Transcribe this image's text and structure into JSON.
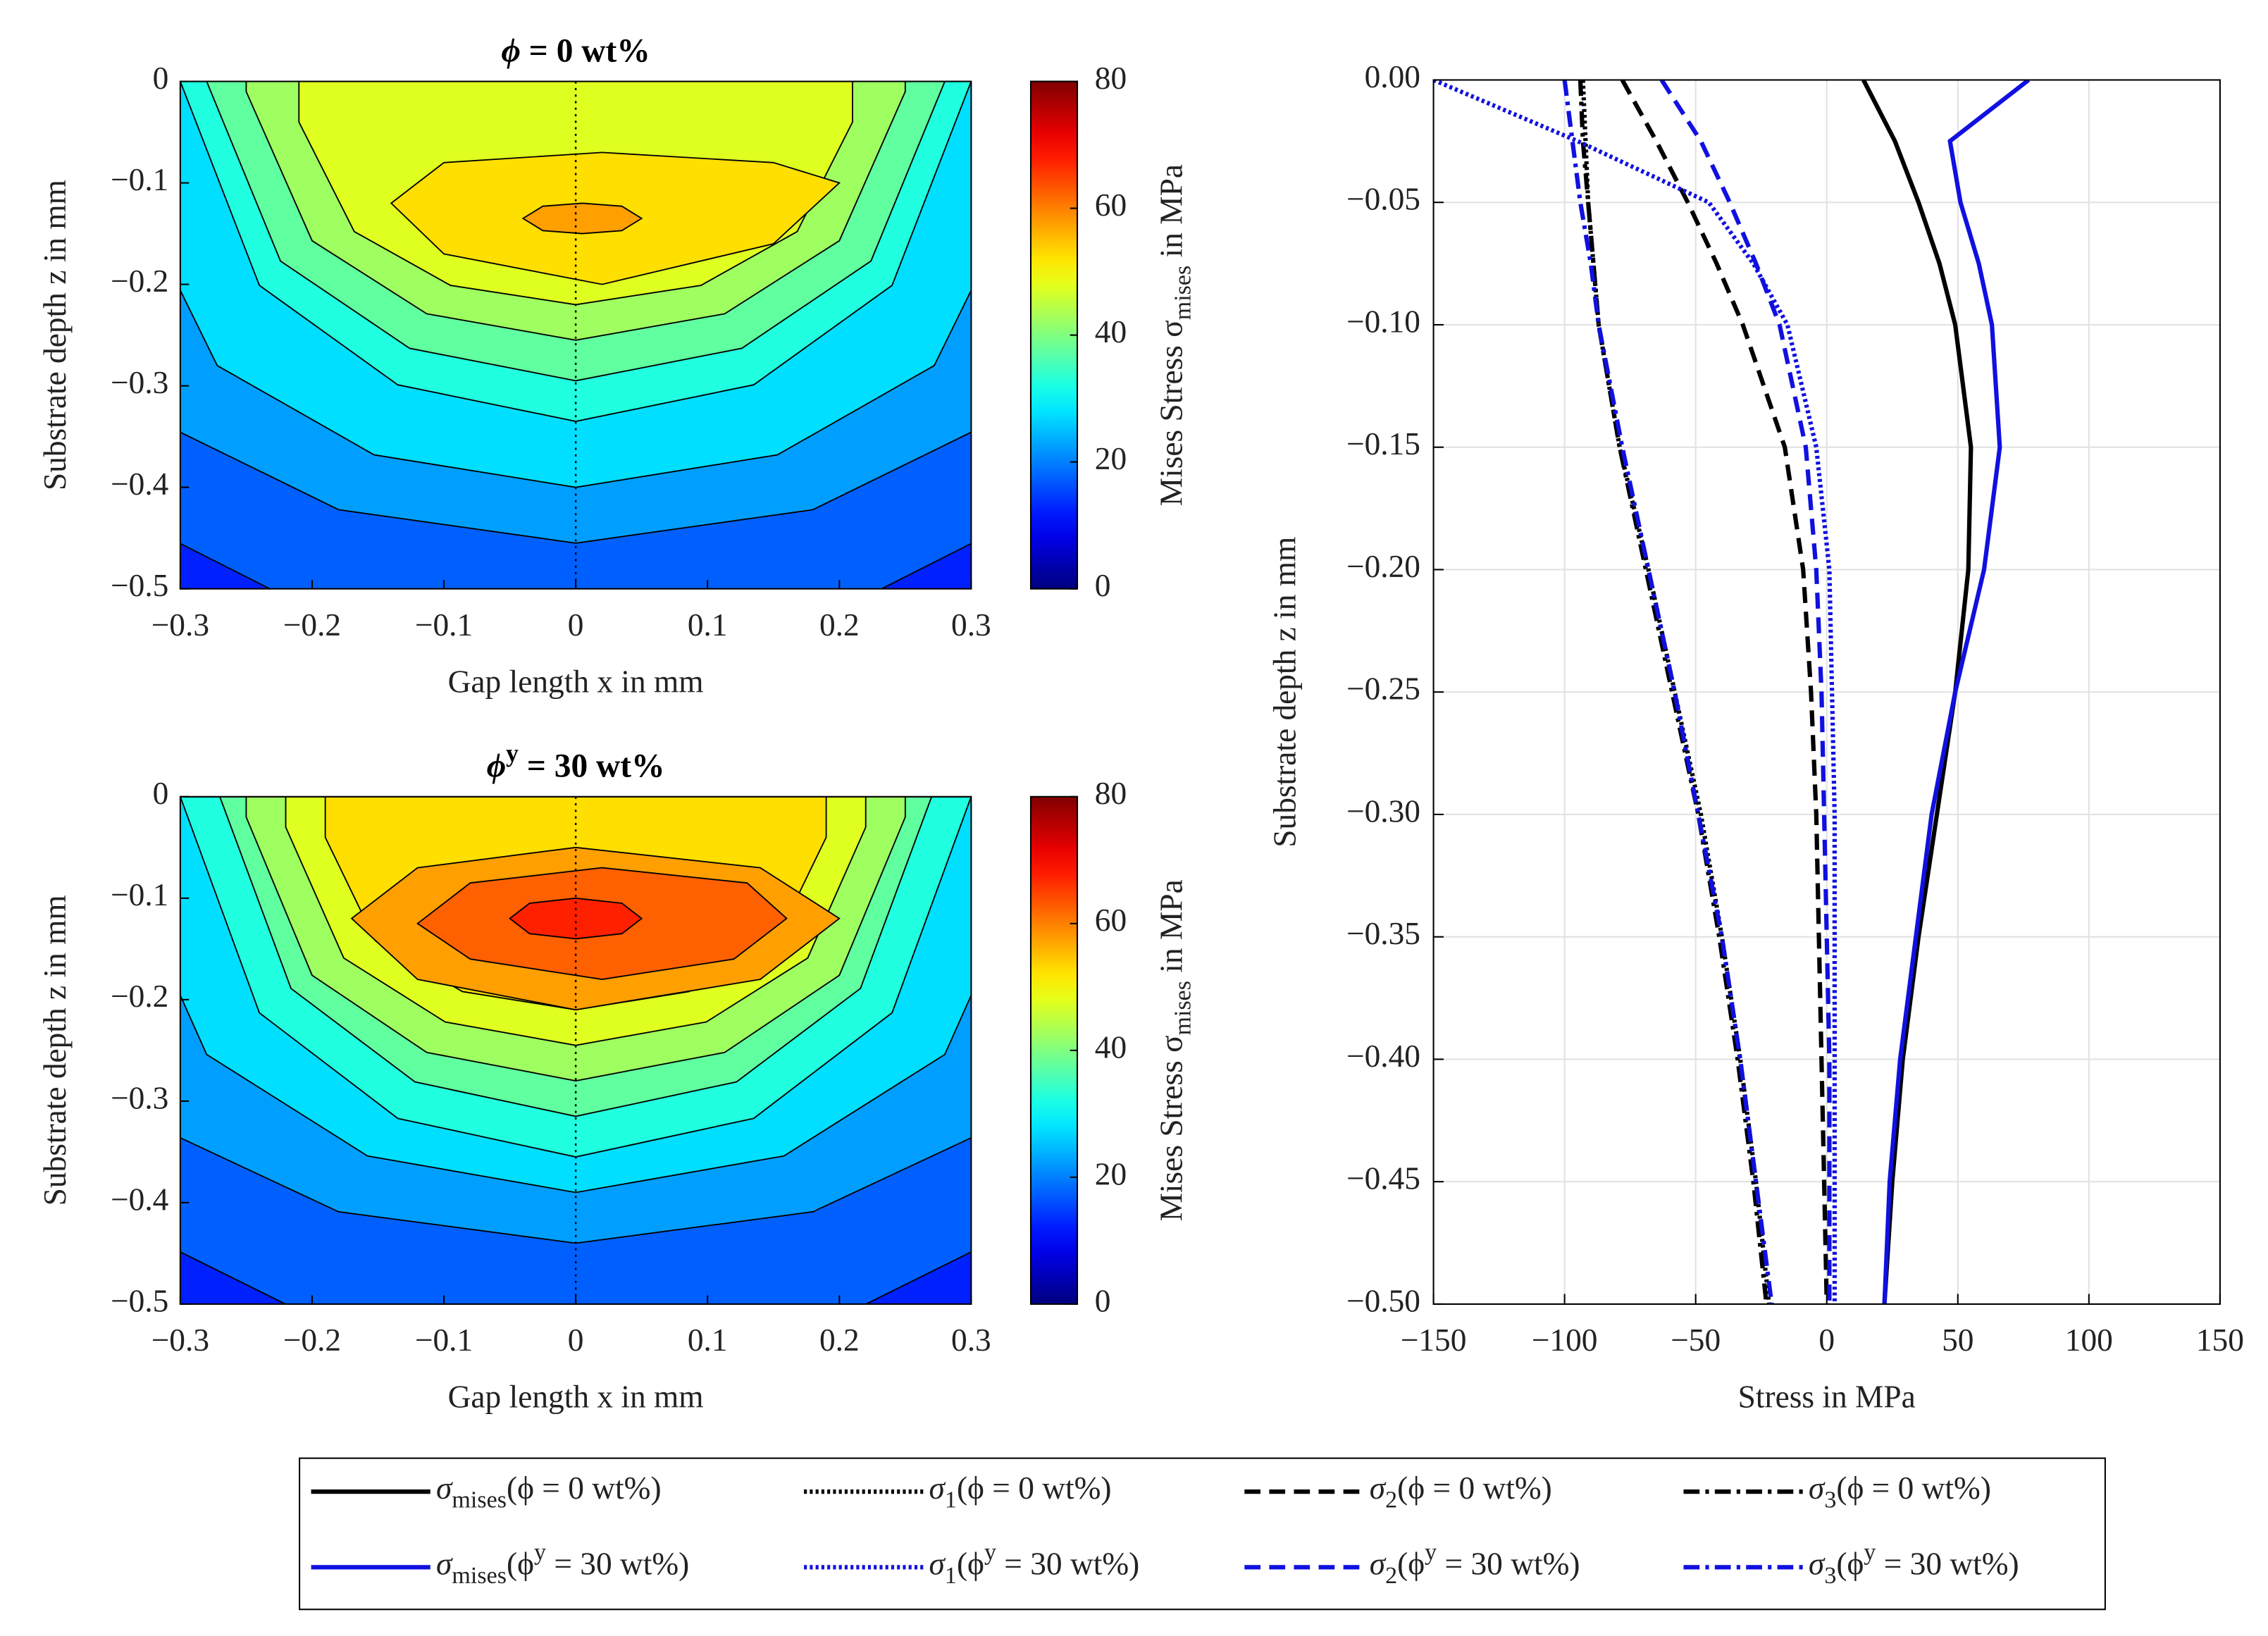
{
  "chart_data": [
    {
      "type": "contour",
      "title": [
        "ϕ",
        " = 0 wt%"
      ],
      "xlabel": "Gap length x in mm",
      "ylabel": "Substrate depth z in mm",
      "xlim": [
        -0.3,
        0.3
      ],
      "ylim": [
        -0.5,
        0
      ],
      "xticks": [
        {
          "value": -0.3,
          "label": "−0.3"
        },
        {
          "value": -0.2,
          "label": "−0.2"
        },
        {
          "value": -0.1,
          "label": "−0.1"
        },
        0,
        0.1,
        0.2,
        0.3
      ],
      "yticks": [
        0,
        {
          "value": -0.1,
          "label": "−0.1"
        },
        {
          "value": -0.2,
          "label": "−0.2"
        },
        {
          "value": -0.3,
          "label": "−0.3"
        },
        {
          "value": -0.4,
          "label": "−0.4"
        },
        {
          "value": -0.5,
          "label": "−0.5"
        }
      ],
      "colorbar": {
        "label": [
          "Mises Stress σ",
          "mises",
          " in MPa"
        ],
        "clim": [
          0,
          80
        ],
        "ticks": [
          0,
          20,
          40,
          60,
          80
        ],
        "colormap": "jet"
      },
      "contours": [
        {
          "level": 15,
          "x": [
            -0.45,
            -0.45,
            -0.36,
            -0.2,
            0,
            0.2,
            0.36,
            0.45,
            0.45
          ],
          "z": [
            0,
            -0.2,
            -0.416,
            -0.521,
            -0.56,
            -0.521,
            -0.416,
            -0.2,
            0
          ]
        },
        {
          "level": 20,
          "x": [
            -0.4,
            -0.4,
            -0.32,
            -0.18,
            0,
            0.18,
            0.32,
            0.4,
            0.4
          ],
          "z": [
            0,
            -0.15,
            -0.333,
            -0.422,
            -0.455,
            -0.422,
            -0.333,
            -0.15,
            0
          ]
        },
        {
          "level": 25,
          "x": [
            -0.34,
            -0.34,
            -0.272,
            -0.153,
            0,
            0.153,
            0.272,
            0.34,
            0.34
          ],
          "z": [
            0,
            -0.1,
            -0.28,
            -0.368,
            -0.4,
            -0.368,
            -0.28,
            -0.1,
            0
          ]
        },
        {
          "level": 30,
          "x": [
            -0.3,
            -0.3,
            -0.24,
            -0.135,
            0,
            0.135,
            0.24,
            0.3,
            0.3
          ],
          "z": [
            0,
            0,
            -0.201,
            -0.299,
            -0.335,
            -0.299,
            -0.201,
            0,
            0
          ]
        },
        {
          "level": 35,
          "x": [
            -0.28,
            -0.28,
            -0.224,
            -0.126,
            0,
            0.126,
            0.224,
            0.28,
            0.28
          ],
          "z": [
            0,
            0,
            -0.177,
            -0.263,
            -0.295,
            -0.263,
            -0.177,
            0,
            0
          ]
        },
        {
          "level": 40,
          "x": [
            -0.25,
            -0.25,
            -0.2,
            -0.113,
            0,
            0.113,
            0.2,
            0.25,
            0.25
          ],
          "z": [
            0,
            -0.01,
            -0.157,
            -0.229,
            -0.255,
            -0.229,
            -0.157,
            -0.01,
            0
          ]
        },
        {
          "level": 45,
          "x": [
            -0.21,
            -0.21,
            -0.168,
            -0.095,
            0,
            0.095,
            0.168,
            0.21,
            0.21
          ],
          "z": [
            0,
            -0.04,
            -0.148,
            -0.201,
            -0.22,
            -0.201,
            -0.148,
            -0.04,
            0
          ]
        },
        {
          "level": 50,
          "x": [
            -0.14,
            -0.1,
            0.02,
            0.15,
            0.2,
            0.15,
            0.02,
            -0.1
          ],
          "z": [
            -0.12,
            -0.08,
            -0.07,
            -0.08,
            -0.1,
            -0.16,
            -0.2,
            -0.17
          ]
        },
        {
          "level": 55,
          "x": [
            -0.04,
            -0.025,
            0.005,
            0.035,
            0.05,
            0.035,
            0.005,
            -0.025
          ],
          "z": [
            -0.135,
            -0.123,
            -0.12,
            -0.123,
            -0.135,
            -0.147,
            -0.15,
            -0.147
          ]
        }
      ]
    },
    {
      "type": "contour",
      "title": [
        "ϕ",
        "y",
        " = 30 wt%"
      ],
      "xlabel": "Gap length x in mm",
      "ylabel": "Substrate depth z in mm",
      "xlim": [
        -0.3,
        0.3
      ],
      "ylim": [
        -0.5,
        0
      ],
      "xticks": [
        {
          "value": -0.3,
          "label": "−0.3"
        },
        {
          "value": -0.2,
          "label": "−0.2"
        },
        {
          "value": -0.1,
          "label": "−0.1"
        },
        0,
        0.1,
        0.2,
        0.3
      ],
      "yticks": [
        0,
        {
          "value": -0.1,
          "label": "−0.1"
        },
        {
          "value": -0.2,
          "label": "−0.2"
        },
        {
          "value": -0.3,
          "label": "−0.3"
        },
        {
          "value": -0.4,
          "label": "−0.4"
        },
        {
          "value": -0.5,
          "label": "−0.5"
        }
      ],
      "colorbar": {
        "label": [
          "Mises Stress σ",
          "mises",
          " in MPa"
        ],
        "clim": [
          0,
          80
        ],
        "ticks": [
          0,
          20,
          40,
          60,
          80
        ],
        "colormap": "jet"
      },
      "contours": [
        {
          "level": 15,
          "x": [
            -0.45,
            -0.45,
            -0.36,
            -0.2,
            0,
            0.2,
            0.36,
            0.45,
            0.45
          ],
          "z": [
            0,
            -0.2,
            -0.41,
            -0.513,
            -0.55,
            -0.513,
            -0.41,
            -0.2,
            0
          ]
        },
        {
          "level": 20,
          "x": [
            -0.4,
            -0.4,
            -0.32,
            -0.18,
            0,
            0.18,
            0.32,
            0.4,
            0.4
          ],
          "z": [
            0,
            -0.15,
            -0.324,
            -0.409,
            -0.44,
            -0.409,
            -0.324,
            -0.15,
            0
          ]
        },
        {
          "level": 25,
          "x": [
            -0.35,
            -0.35,
            -0.28,
            -0.158,
            0,
            0.158,
            0.28,
            0.35,
            0.35
          ],
          "z": [
            0,
            -0.05,
            -0.254,
            -0.354,
            -0.39,
            -0.354,
            -0.254,
            -0.05,
            0
          ]
        },
        {
          "level": 30,
          "x": [
            -0.3,
            -0.3,
            -0.24,
            -0.135,
            0,
            0.135,
            0.24,
            0.3,
            0.3
          ],
          "z": [
            0,
            0,
            -0.213,
            -0.317,
            -0.355,
            -0.317,
            -0.213,
            0,
            0
          ]
        },
        {
          "level": 35,
          "x": [
            -0.27,
            -0.27,
            -0.216,
            -0.122,
            0,
            0.122,
            0.216,
            0.27,
            0.27
          ],
          "z": [
            0,
            0,
            -0.189,
            -0.281,
            -0.315,
            -0.281,
            -0.189,
            0,
            0
          ]
        },
        {
          "level": 40,
          "x": [
            -0.25,
            -0.25,
            -0.2,
            -0.113,
            0,
            0.113,
            0.2,
            0.25,
            0.25
          ],
          "z": [
            0,
            -0.02,
            -0.176,
            -0.252,
            -0.28,
            -0.252,
            -0.176,
            -0.02,
            0
          ]
        },
        {
          "level": 45,
          "x": [
            -0.22,
            -0.22,
            -0.176,
            -0.099,
            0,
            0.099,
            0.176,
            0.22,
            0.22
          ],
          "z": [
            0,
            -0.03,
            -0.159,
            -0.222,
            -0.245,
            -0.222,
            -0.159,
            -0.03,
            0
          ]
        },
        {
          "level": 50,
          "x": [
            -0.19,
            -0.19,
            -0.152,
            -0.086,
            0,
            0.086,
            0.152,
            0.19,
            0.19
          ],
          "z": [
            0,
            -0.04,
            -0.142,
            -0.192,
            -0.21,
            -0.192,
            -0.142,
            -0.04,
            0
          ]
        },
        {
          "level": 55,
          "x": [
            -0.17,
            -0.12,
            0,
            0.14,
            0.2,
            0.14,
            0,
            -0.12
          ],
          "z": [
            -0.12,
            -0.07,
            -0.05,
            -0.07,
            -0.12,
            -0.18,
            -0.21,
            -0.18
          ]
        },
        {
          "level": 60,
          "x": [
            -0.12,
            -0.08,
            0.02,
            0.13,
            0.16,
            0.12,
            0.02,
            -0.08
          ],
          "z": [
            -0.125,
            -0.085,
            -0.07,
            -0.085,
            -0.12,
            -0.16,
            -0.18,
            -0.16
          ]
        },
        {
          "level": 65,
          "x": [
            -0.05,
            -0.035,
            0,
            0.035,
            0.05,
            0.035,
            0,
            -0.035
          ],
          "z": [
            -0.12,
            -0.105,
            -0.1,
            -0.105,
            -0.12,
            -0.135,
            -0.14,
            -0.135
          ]
        }
      ]
    },
    {
      "type": "line",
      "xlabel": "Stress in MPa",
      "ylabel": "Substrate depth z in mm",
      "xlim": [
        -150,
        150
      ],
      "ylim": [
        -0.5,
        0
      ],
      "grid": true,
      "legend": "below",
      "xticks": [
        {
          "value": -150,
          "label": "−150"
        },
        {
          "value": -100,
          "label": "−100"
        },
        {
          "value": -50,
          "label": "−50"
        },
        0,
        50,
        100,
        150
      ],
      "yticks": [
        {
          "value": 0,
          "label": "0.00"
        },
        {
          "value": -0.05,
          "label": "−0.05"
        },
        {
          "value": -0.1,
          "label": "−0.10"
        },
        {
          "value": -0.15,
          "label": "−0.15"
        },
        {
          "value": -0.2,
          "label": "−0.20"
        },
        {
          "value": -0.25,
          "label": "−0.25"
        },
        {
          "value": -0.3,
          "label": "−0.30"
        },
        {
          "value": -0.35,
          "label": "−0.35"
        },
        {
          "value": -0.4,
          "label": "−0.40"
        },
        {
          "value": -0.45,
          "label": "−0.45"
        },
        {
          "value": -0.5,
          "label": "−0.50"
        }
      ],
      "y": [
        0,
        -0.025,
        -0.05,
        -0.075,
        -0.1,
        -0.15,
        -0.2,
        -0.25,
        -0.3,
        -0.35,
        -0.4,
        -0.45,
        -0.5
      ],
      "series": [
        {
          "name": [
            "σ",
            "mises",
            "(ϕ = 0 wt%)"
          ],
          "color": "#000000",
          "style": "solid",
          "values": [
            14,
            26,
            35,
            43,
            49,
            55,
            54,
            49,
            42,
            35,
            29,
            25,
            22
          ]
        },
        {
          "name": [
            "σ",
            "1",
            "(ϕ = 0 wt%)"
          ],
          "color": "#000000",
          "style": "dotted",
          "values": [
            -93,
            -92,
            -91,
            -89,
            -87,
            -79,
            -68,
            -58,
            -48,
            -40,
            -33,
            -27,
            -22
          ]
        },
        {
          "name": [
            "σ",
            "2",
            "(ϕ = 0 wt%)"
          ],
          "color": "#000000",
          "style": "dashed",
          "values": [
            -78,
            -65,
            -53,
            -42,
            -32,
            -16,
            -9,
            -6,
            -4,
            -3,
            -2,
            -1,
            0
          ]
        },
        {
          "name": [
            "σ",
            "3",
            "(ϕ = 0 wt%)"
          ],
          "color": "#000000",
          "style": "dashdot",
          "values": [
            -94,
            -93,
            -91,
            -89,
            -87,
            -79,
            -69,
            -59,
            -49,
            -41,
            -34,
            -28,
            -23
          ]
        },
        {
          "name": [
            "σ",
            "mises",
            "(ϕ",
            "y",
            " = 30 wt%)"
          ],
          "color": "#1010e0",
          "style": "solid",
          "values": [
            77,
            47,
            51,
            58,
            63,
            66,
            60,
            49,
            40,
            34,
            28,
            24,
            22
          ]
        },
        {
          "name": [
            "σ",
            "1",
            "(ϕ",
            "y",
            " = 30 wt%)"
          ],
          "color": "#1010e0",
          "style": "dotted",
          "values": [
            -150,
            -95,
            -45,
            -28,
            -15,
            -4,
            1,
            2,
            3,
            3,
            3,
            3,
            3
          ]
        },
        {
          "name": [
            "σ",
            "2",
            "(ϕ",
            "y",
            " = 30 wt%)"
          ],
          "color": "#1010e0",
          "style": "dashed",
          "values": [
            -63,
            -48,
            -37,
            -27,
            -18,
            -8,
            -4,
            -2,
            -1,
            0,
            1,
            1,
            1
          ]
        },
        {
          "name": [
            "σ",
            "3",
            "(ϕ",
            "y",
            " = 30 wt%)"
          ],
          "color": "#1010e0",
          "style": "dashdot",
          "values": [
            -100,
            -97,
            -94,
            -90,
            -87,
            -78,
            -68,
            -58,
            -49,
            -40,
            -33,
            -27,
            -21
          ]
        }
      ]
    }
  ]
}
